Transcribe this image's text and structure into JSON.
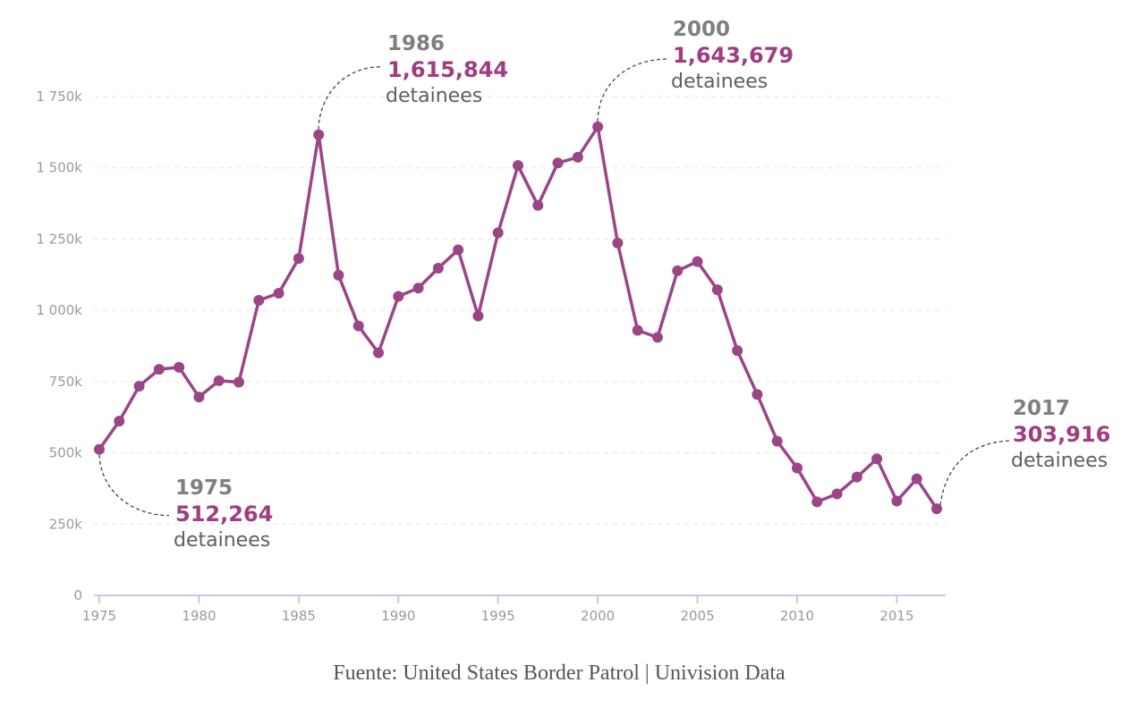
{
  "chart_data": {
    "type": "line",
    "title": "",
    "xlabel": "",
    "ylabel": "",
    "xlim": [
      1975,
      2017
    ],
    "ylim": [
      0,
      1750000
    ],
    "grid": true,
    "line_color": "#9b4587",
    "x_ticks": [
      "1975",
      "1980",
      "1985",
      "1990",
      "1995",
      "2000",
      "2005",
      "2010",
      "2015"
    ],
    "x_tick_values": [
      1975,
      1980,
      1985,
      1990,
      1995,
      2000,
      2005,
      2010,
      2015
    ],
    "y_ticks": [
      "0",
      "250k",
      "500k",
      "750k",
      "1 000k",
      "1 250k",
      "1 500k",
      "1 750k"
    ],
    "y_tick_values": [
      0,
      250000,
      500000,
      750000,
      1000000,
      1250000,
      1500000,
      1750000
    ],
    "x": [
      1975,
      1976,
      1977,
      1978,
      1979,
      1980,
      1981,
      1982,
      1983,
      1984,
      1985,
      1986,
      1987,
      1988,
      1989,
      1990,
      1991,
      1992,
      1993,
      1994,
      1995,
      1996,
      1997,
      1998,
      1999,
      2000,
      2001,
      2002,
      2003,
      2004,
      2005,
      2006,
      2007,
      2008,
      2009,
      2010,
      2011,
      2012,
      2013,
      2014,
      2015,
      2016,
      2017
    ],
    "values": [
      512264,
      611000,
      734000,
      793000,
      800000,
      696000,
      753000,
      748000,
      1035000,
      1060000,
      1182000,
      1615844,
      1123000,
      945000,
      851000,
      1049000,
      1078000,
      1148000,
      1212000,
      980000,
      1272000,
      1508000,
      1368000,
      1517000,
      1537000,
      1643679,
      1236000,
      930000,
      905000,
      1139000,
      1171000,
      1072000,
      859000,
      705000,
      541000,
      447000,
      328000,
      356000,
      415000,
      479000,
      331000,
      409000,
      303916
    ],
    "annotations": [
      {
        "year": "1975",
        "value": "512,264",
        "unit": "detainees"
      },
      {
        "year": "1986",
        "value": "1,615,844",
        "unit": "detainees"
      },
      {
        "year": "2000",
        "value": "1,643,679",
        "unit": "detainees"
      },
      {
        "year": "2017",
        "value": "303,916",
        "unit": "detainees"
      }
    ]
  },
  "source": "Fuente: United States Border Patrol | Univision Data"
}
